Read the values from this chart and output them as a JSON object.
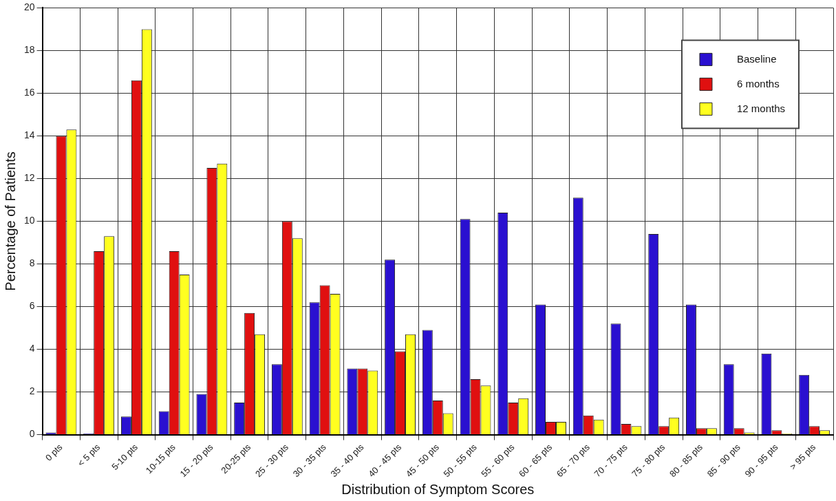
{
  "chart_data": {
    "type": "bar",
    "xlabel": "Distribution of Symptom Scores",
    "ylabel": "Percentage of Patients",
    "categories": [
      "0 pts",
      "< 5 pts",
      "5-10 pts",
      "10-15 pts",
      "15 - 20 pts",
      "20-25 pts",
      "25 - 30 pts",
      "30 - 35 pts",
      "35 - 40 pts",
      "40 - 45 pts",
      "45 - 50 pts",
      "50 - 55 pts",
      "55 - 60 pts",
      "60 - 65 pts",
      "65 - 70 pts",
      "70 - 75 pts",
      "75 - 80 pts",
      "80 - 85 pts",
      "85 - 90 pts",
      "90 - 95 pts",
      "> 95 pts"
    ],
    "series": [
      {
        "name": "Baseline",
        "color": "#2a10d0",
        "values": [
          0.1,
          0.05,
          0.85,
          1.1,
          1.9,
          1.5,
          3.3,
          6.2,
          3.1,
          8.2,
          4.9,
          10.1,
          10.4,
          6.1,
          11.1,
          5.2,
          9.4,
          6.1,
          3.3,
          3.8,
          2.8
        ]
      },
      {
        "name": "6 months",
        "color": "#e01010",
        "values": [
          14.0,
          8.6,
          16.6,
          8.6,
          12.5,
          5.7,
          10.0,
          7.0,
          3.1,
          3.9,
          1.6,
          2.6,
          1.5,
          0.6,
          0.9,
          0.5,
          0.4,
          0.3,
          0.3,
          0.2,
          0.4
        ]
      },
      {
        "name": "12 months",
        "color": "#ffff20",
        "values": [
          14.3,
          9.3,
          19.0,
          7.5,
          12.7,
          4.7,
          9.2,
          6.6,
          3.0,
          4.7,
          1.0,
          2.3,
          1.7,
          0.6,
          0.7,
          0.4,
          0.8,
          0.3,
          0.1,
          0.05,
          0.2
        ]
      }
    ],
    "ylim": [
      0,
      20
    ],
    "yticks": [
      0,
      2,
      4,
      6,
      8,
      10,
      12,
      14,
      16,
      18,
      20
    ],
    "grid": true,
    "legend": "top right"
  }
}
